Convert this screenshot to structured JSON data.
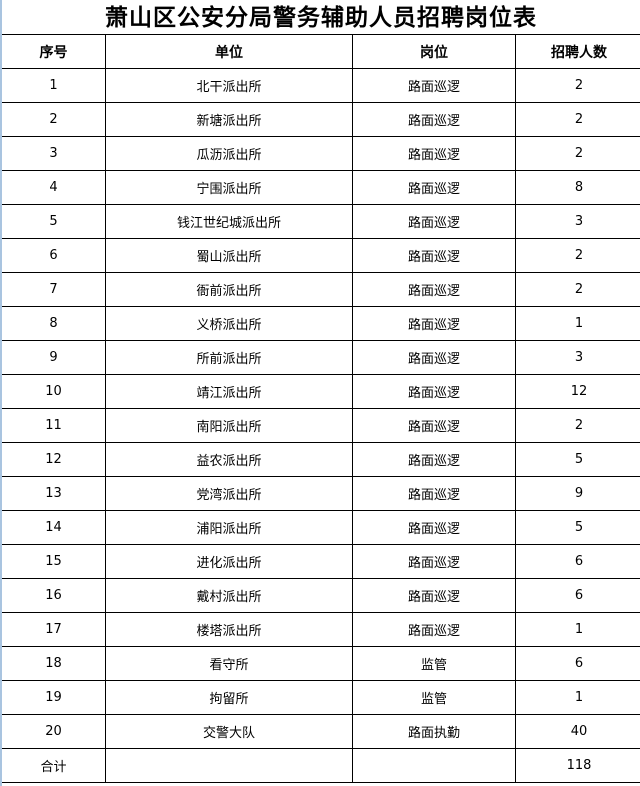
{
  "title": "萧山区公安分局警务辅助人员招聘岗位表",
  "headers": [
    "序号",
    "单位",
    "岗位",
    "招聘人数"
  ],
  "rows": [
    [
      "1",
      "北干派出所",
      "路面巡逻",
      "2"
    ],
    [
      "2",
      "新塘派出所",
      "路面巡逻",
      "2"
    ],
    [
      "3",
      "瓜沥派出所",
      "路面巡逻",
      "2"
    ],
    [
      "4",
      "宁围派出所",
      "路面巡逻",
      "8"
    ],
    [
      "5",
      "钱江世纪城派出所",
      "路面巡逻",
      "3"
    ],
    [
      "6",
      "蜀山派出所",
      "路面巡逻",
      "2"
    ],
    [
      "7",
      "衙前派出所",
      "路面巡逻",
      "2"
    ],
    [
      "8",
      "义桥派出所",
      "路面巡逻",
      "1"
    ],
    [
      "9",
      "所前派出所",
      "路面巡逻",
      "3"
    ],
    [
      "10",
      "靖江派出所",
      "路面巡逻",
      "12"
    ],
    [
      "11",
      "南阳派出所",
      "路面巡逻",
      "2"
    ],
    [
      "12",
      "益农派出所",
      "路面巡逻",
      "5"
    ],
    [
      "13",
      "党湾派出所",
      "路面巡逻",
      "9"
    ],
    [
      "14",
      "浦阳派出所",
      "路面巡逻",
      "5"
    ],
    [
      "15",
      "进化派出所",
      "路面巡逻",
      "6"
    ],
    [
      "16",
      "戴村派出所",
      "路面巡逻",
      "6"
    ],
    [
      "17",
      "楼塔派出所",
      "路面巡逻",
      "1"
    ],
    [
      "18",
      "看守所",
      "监管",
      "6"
    ],
    [
      "19",
      "拘留所",
      "监管",
      "1"
    ],
    [
      "20",
      "交警大队",
      "路面执勤",
      "40"
    ]
  ],
  "total": {
    "label": "合计",
    "unit": "",
    "post": "",
    "count": "118"
  }
}
